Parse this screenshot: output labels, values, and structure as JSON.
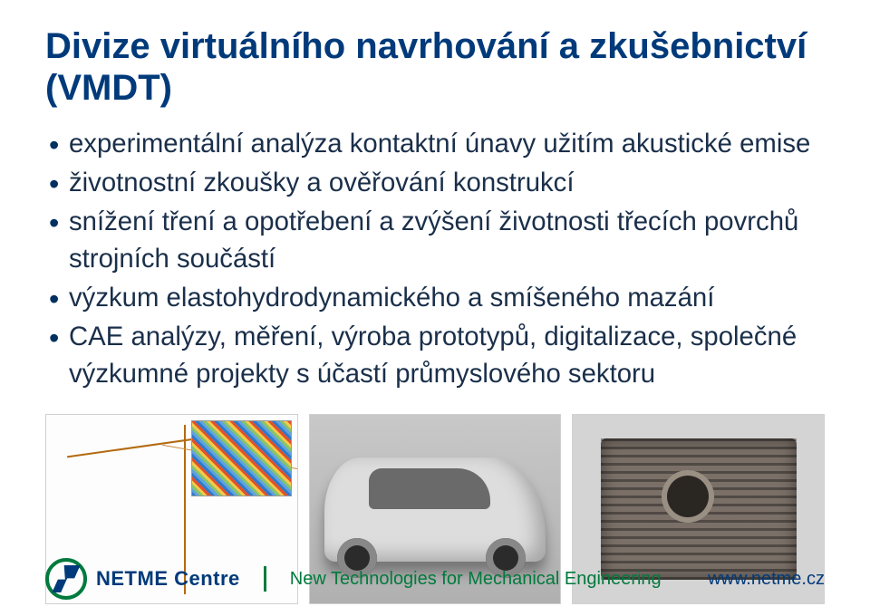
{
  "title": "Divize virtuálního navrhování a zkušebnictví (VMDT)",
  "title_color": "#003a7a",
  "title_fontsize_pt": 30,
  "bullet_color": "#1a2f4a",
  "bullet_fontsize_pt": 22,
  "bullets": [
    "experimentální analýza kontaktní únavy užitím akustické emise",
    "životnostní zkoušky a ověřování konstrukcí",
    "snížení tření a opotřebení a zvýšení životnosti třecích povrchů strojních součástí",
    "výzkum elastohydrodynamického a smíšeného mazání",
    "CAE analýzy, měření, výroba prototypů, digitalizace, společné výzkumné projekty s účastí průmyslového sektoru"
  ],
  "images": [
    {
      "alt": "FEA wireframe of crane structure",
      "placeholder": "crane-wireframe"
    },
    {
      "alt": "Concept vehicle rendering",
      "placeholder": "concept-car"
    },
    {
      "alt": "Finned gearbox casting",
      "placeholder": "gearbox-housing"
    }
  ],
  "footer": {
    "brand": "NETME Centre",
    "brand_color": "#003a7a",
    "tagline": "New Technologies for Mechanical Engineering",
    "tagline_color": "#007a3d",
    "tagline_fontsize_pt": 15,
    "url": "www.netme.cz",
    "logo_ring_color": "#007a3d",
    "logo_mark_color": "#003a7a",
    "divider_color": "#007a3d"
  },
  "background_color": "#ffffff"
}
